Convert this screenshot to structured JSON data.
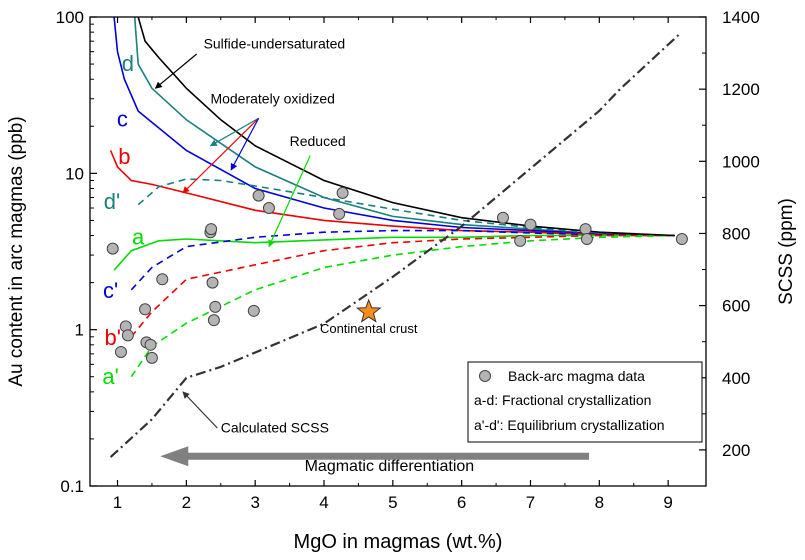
{
  "chart_data": {
    "type": "line",
    "xlabel": "MgO in magmas (wt.%)",
    "ylabel_left": "Au content in arc magmas (ppb)",
    "ylabel_right": "SCSS (ppm)",
    "xlim": [
      0.6,
      9.55
    ],
    "ylim_left": [
      0.1,
      100
    ],
    "yscale_left": "log",
    "ylim_right": [
      100,
      1400
    ],
    "x_ticks": [
      "1",
      "2",
      "3",
      "4",
      "5",
      "6",
      "7",
      "8",
      "9"
    ],
    "y_left_ticks": [
      "0.1",
      "1",
      "10",
      "100"
    ],
    "y_right_ticks": [
      "200",
      "400",
      "600",
      "800",
      "1000",
      "1200",
      "1400"
    ],
    "series": [
      {
        "label": "d",
        "style": "solid",
        "color": "#1a7f7f",
        "points": [
          [
            1.25,
            100
          ],
          [
            1.3,
            50
          ],
          [
            1.5,
            35
          ],
          [
            2,
            22
          ],
          [
            3,
            11
          ],
          [
            4,
            7
          ],
          [
            5,
            5.3
          ],
          [
            6,
            4.7
          ],
          [
            7,
            4.4
          ],
          [
            8,
            4.1
          ],
          [
            9.1,
            4.0
          ]
        ]
      },
      {
        "label": "c",
        "style": "solid",
        "color": "#0000dd",
        "points": [
          [
            0.95,
            100
          ],
          [
            1.0,
            60
          ],
          [
            1.1,
            40
          ],
          [
            1.3,
            25
          ],
          [
            2,
            14
          ],
          [
            3,
            8
          ],
          [
            4,
            6
          ],
          [
            5,
            5
          ],
          [
            6,
            4.5
          ],
          [
            7,
            4.3
          ],
          [
            8,
            4.1
          ],
          [
            9.1,
            4.0
          ]
        ]
      },
      {
        "label": "b",
        "style": "solid",
        "color": "#ee0000",
        "points": [
          [
            0.9,
            14
          ],
          [
            1.0,
            11
          ],
          [
            1.2,
            9
          ],
          [
            1.5,
            8.5
          ],
          [
            2,
            7.5
          ],
          [
            3,
            5.8
          ],
          [
            4,
            5
          ],
          [
            5,
            4.6
          ],
          [
            6,
            4.3
          ],
          [
            7,
            4.2
          ],
          [
            8,
            4.05
          ],
          [
            9.1,
            4.0
          ]
        ]
      },
      {
        "label": "a",
        "style": "solid",
        "color": "#00dd00",
        "points": [
          [
            0.95,
            2.4
          ],
          [
            1.2,
            3.2
          ],
          [
            1.6,
            3.7
          ],
          [
            2,
            3.8
          ],
          [
            3,
            3.6
          ],
          [
            4,
            3.75
          ],
          [
            5,
            3.9
          ],
          [
            6,
            3.9
          ],
          [
            7,
            4.0
          ],
          [
            8,
            4.0
          ],
          [
            9.1,
            4.0
          ]
        ]
      },
      {
        "label": "d'",
        "style": "dashed",
        "color": "#1a7f7f",
        "points": [
          [
            1.3,
            6.3
          ],
          [
            1.6,
            8.2
          ],
          [
            2,
            9.2
          ],
          [
            2.5,
            9.0
          ],
          [
            3,
            8.3
          ],
          [
            4,
            7.0
          ],
          [
            5,
            5.9
          ],
          [
            6,
            5.0
          ],
          [
            7,
            4.5
          ],
          [
            8,
            4.1
          ],
          [
            9.1,
            4.0
          ]
        ]
      },
      {
        "label": "c'",
        "style": "dashed",
        "color": "#0000dd",
        "points": [
          [
            1.2,
            1.8
          ],
          [
            1.5,
            2.5
          ],
          [
            2,
            3.4
          ],
          [
            3,
            3.9
          ],
          [
            4,
            4.2
          ],
          [
            5,
            4.3
          ],
          [
            6,
            4.3
          ],
          [
            7,
            4.15
          ],
          [
            8,
            4.05
          ],
          [
            9.1,
            4.0
          ]
        ]
      },
      {
        "label": "b'",
        "style": "dashed",
        "color": "#ee0000",
        "points": [
          [
            1.2,
            0.9
          ],
          [
            1.5,
            1.3
          ],
          [
            2,
            2.1
          ],
          [
            3,
            2.6
          ],
          [
            4,
            3.2
          ],
          [
            5,
            3.6
          ],
          [
            6,
            3.8
          ],
          [
            7,
            3.9
          ],
          [
            8,
            4.0
          ],
          [
            9.1,
            4.0
          ]
        ]
      },
      {
        "label": "a'",
        "style": "dashed",
        "color": "#00dd00",
        "points": [
          [
            1.2,
            0.5
          ],
          [
            1.5,
            0.78
          ],
          [
            2,
            1.1
          ],
          [
            3,
            1.8
          ],
          [
            4,
            2.5
          ],
          [
            5,
            3.0
          ],
          [
            6,
            3.4
          ],
          [
            7,
            3.7
          ],
          [
            8,
            3.9
          ],
          [
            9.1,
            4.0
          ]
        ]
      },
      {
        "label": "Sulfide-undersaturated",
        "style": "solid",
        "color": "#000000",
        "points": [
          [
            1.3,
            100
          ],
          [
            1.4,
            70
          ],
          [
            1.6,
            55
          ],
          [
            2,
            35
          ],
          [
            2.5,
            22
          ],
          [
            3,
            15
          ],
          [
            4,
            9
          ],
          [
            5,
            6.5
          ],
          [
            6,
            5.2
          ],
          [
            7,
            4.6
          ],
          [
            8,
            4.2
          ],
          [
            9.1,
            4.0
          ]
        ]
      },
      {
        "label": "Calculated SCSS",
        "style": "dashdot",
        "color": "#333333",
        "axis": "right",
        "points": [
          [
            0.9,
            180
          ],
          [
            1.5,
            285
          ],
          [
            2,
            400
          ],
          [
            2.5,
            430
          ],
          [
            3,
            470
          ],
          [
            3.5,
            510
          ],
          [
            4,
            550
          ],
          [
            5,
            680
          ],
          [
            6,
            820
          ],
          [
            7,
            980
          ],
          [
            8,
            1140
          ],
          [
            8.3,
            1200
          ],
          [
            9.15,
            1350
          ]
        ]
      }
    ],
    "scatter": {
      "name": "Back-arc magma data",
      "color": "#b4b4b4",
      "points": [
        [
          0.93,
          3.3
        ],
        [
          1.05,
          0.72
        ],
        [
          1.12,
          1.05
        ],
        [
          1.15,
          0.92
        ],
        [
          1.4,
          1.35
        ],
        [
          1.42,
          0.83
        ],
        [
          1.48,
          0.8
        ],
        [
          1.5,
          0.66
        ],
        [
          1.65,
          2.1
        ],
        [
          2.35,
          4.2
        ],
        [
          2.36,
          4.4
        ],
        [
          2.38,
          2.0
        ],
        [
          2.4,
          1.15
        ],
        [
          2.42,
          1.4
        ],
        [
          2.98,
          1.32
        ],
        [
          3.05,
          7.2
        ],
        [
          3.2,
          6.0
        ],
        [
          4.22,
          5.5
        ],
        [
          4.27,
          7.5
        ],
        [
          6.6,
          5.2
        ],
        [
          6.85,
          3.7
        ],
        [
          7.0,
          4.7
        ],
        [
          7.8,
          4.4
        ],
        [
          7.82,
          3.8
        ],
        [
          9.2,
          3.8
        ]
      ]
    },
    "star": {
      "label": "Continental crust",
      "x": 4.65,
      "y": 1.3,
      "color": "#ff8c1a"
    },
    "curve_labels": [
      {
        "text": "d",
        "x": 1.15,
        "y": 45,
        "color": "#1a7f7f"
      },
      {
        "text": "c",
        "x": 1.07,
        "y": 20,
        "color": "#0000dd"
      },
      {
        "text": "b",
        "x": 1.1,
        "y": 11.5,
        "color": "#ee0000"
      },
      {
        "text": "a",
        "x": 1.3,
        "y": 3.5,
        "color": "#00dd00"
      },
      {
        "text": "d'",
        "x": 0.92,
        "y": 5.9,
        "color": "#1a7f7f"
      },
      {
        "text": "c'",
        "x": 0.9,
        "y": 1.6,
        "color": "#0000dd"
      },
      {
        "text": "b'",
        "x": 0.93,
        "y": 0.8,
        "color": "#ee0000"
      },
      {
        "text": "a'",
        "x": 0.9,
        "y": 0.45,
        "color": "#00dd00"
      }
    ],
    "annotations": [
      {
        "text": "Sulfide-undersaturated",
        "x": 2.25,
        "y": 63
      },
      {
        "text": "Moderately oxidized",
        "x": 2.35,
        "y": 28
      },
      {
        "text": "Reduced",
        "x": 3.5,
        "y": 15
      },
      {
        "text": "Calculated SCSS",
        "x": 2.5,
        "y": 0.22
      },
      {
        "text": "Continental crust",
        "x": 4.65,
        "y": 0.95
      },
      {
        "text": "Magmatic differentiation",
        "x": 4.95,
        "y": 0.125
      }
    ],
    "legend": {
      "placement": "bottom-right",
      "entries": [
        "Back-arc magma data",
        "a-d:  Fractional crystallization",
        "a'-d': Equilibrium crystallization"
      ]
    },
    "arrows": {
      "magmatic": {
        "from": [
          7.85,
          0.155
        ],
        "to": [
          1.65,
          0.155
        ],
        "color": "#808080"
      },
      "sulfide": {
        "from": [
          2.15,
          58
        ],
        "to": [
          1.55,
          35
        ],
        "color": "#000000"
      },
      "oxidized_origin": [
        3.05,
        22.5
      ],
      "oxidized": [
        {
          "to": [
            2.35,
            15
          ],
          "color": "#1a7f7f"
        },
        {
          "to": [
            1.95,
            7.5
          ],
          "color": "#ee0000"
        },
        {
          "to": [
            2.65,
            10.5
          ],
          "color": "#0000dd"
        }
      ],
      "reduced": {
        "from": [
          3.8,
          13
        ],
        "to": [
          3.2,
          3.4
        ],
        "color": "#00dd00"
      },
      "scss": {
        "from": [
          2.5,
          0.22
        ],
        "to": [
          1.95,
          0.4
        ],
        "color": "#333333"
      }
    }
  }
}
